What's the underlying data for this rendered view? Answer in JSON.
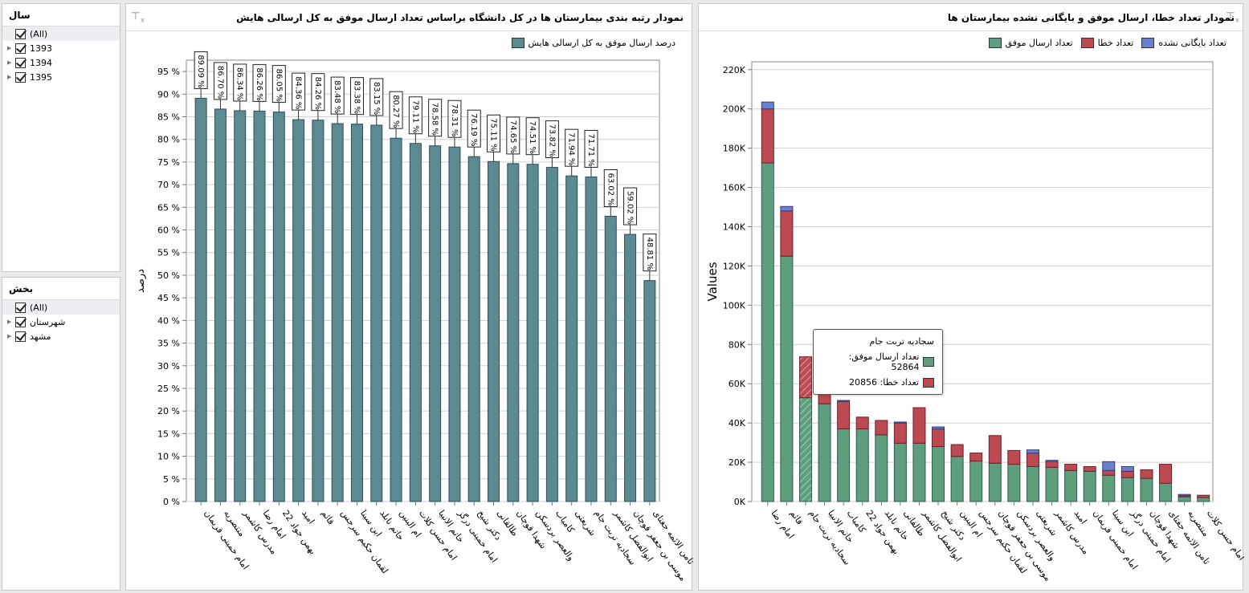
{
  "filters": [
    {
      "title": "سال",
      "items": [
        {
          "label": "(All)",
          "checked": true,
          "expandable": false
        },
        {
          "label": "1393",
          "checked": true,
          "expandable": true
        },
        {
          "label": "1394",
          "checked": true,
          "expandable": true
        },
        {
          "label": "1395",
          "checked": true,
          "expandable": true
        }
      ]
    },
    {
      "title": "بخش",
      "items": [
        {
          "label": "(All)",
          "checked": true,
          "expandable": false
        },
        {
          "label": "شهرستان",
          "checked": true,
          "expandable": true
        },
        {
          "label": "مشهد",
          "checked": true,
          "expandable": true
        }
      ]
    }
  ],
  "left_panel": {
    "title": "نمودار رتبه بندی بیمارستان ها در کل دانشگاه براساس تعداد ارسال موفق به کل ارسالی هایش",
    "clear_filter_icon": "clear-filter-icon"
  },
  "right_panel": {
    "title": "نمودار تعداد خطا، ارسال موفق و بایگانی نشده بیمارستان ها",
    "clear_filter_icon": "clear-filter-icon"
  },
  "colors": {
    "teal_bar": "#5b8a91",
    "success": "#5e9e7f",
    "error": "#bb4a52",
    "unarchived": "#6b7fcb"
  },
  "tooltip": {
    "title": "سجادیه تربت جام",
    "rows": [
      {
        "label": "تعداد ارسال موفق: 52864",
        "color": "#5e9e7f"
      },
      {
        "label": "تعداد خطا: 20856",
        "color": "#bb4a52"
      }
    ]
  },
  "chart_data": [
    {
      "type": "bar",
      "title": "نمودار رتبه بندی بیمارستان ها در کل دانشگاه براساس تعداد ارسال موفق به کل ارسالی هایش",
      "xlabel": "",
      "ylabel": "درصد",
      "ylim": [
        0,
        95
      ],
      "yticks": [
        "0 %",
        "5 %",
        "10 %",
        "15 %",
        "20 %",
        "25 %",
        "30 %",
        "35 %",
        "40 %",
        "45 %",
        "50 %",
        "55 %",
        "60 %",
        "65 %",
        "70 %",
        "75 %",
        "80 %",
        "85 %",
        "90 %",
        "95 %"
      ],
      "grid": true,
      "legend": {
        "position": "top-right",
        "entries": [
          "درصد ارسال موفق به کل ارسالی هایش"
        ]
      },
      "categories": [
        "امام خمینی فریمان",
        "منتصریه",
        "مدرس کاشمر",
        "امام رضا",
        "بهمن جواد 22",
        "امید",
        "قائم",
        "لقمان حکیم سرجس",
        "ابن سینا",
        "خاتم نابلد",
        "ام البنین",
        "امام حسن کلات",
        "خاتم الانبیا",
        "امام خمینی درگز",
        "دکتر شیخ",
        "طالقانی",
        "شهدا قوچان",
        "والعصر بردسکن",
        "کامیاب",
        "شریعتی",
        "سجادیه تربت جام",
        "ابوالفضل کاشمر",
        "موسی بن جعفر قوچان",
        "ثامن الائمه جغتای"
      ],
      "series": [
        {
          "name": "درصد ارسال موفق به کل ارسالی هایش",
          "values": [
            89.09,
            86.7,
            86.34,
            86.26,
            86.05,
            84.36,
            84.26,
            83.48,
            83.38,
            83.15,
            80.27,
            79.11,
            78.58,
            78.31,
            76.19,
            75.11,
            74.65,
            74.51,
            73.82,
            71.94,
            71.71,
            63.02,
            59.02,
            48.81
          ],
          "labels": [
            "89.09 %",
            "86.70 %",
            "86.34 %",
            "86.26 %",
            "86.05 %",
            "84.36 %",
            "84.26 %",
            "83.48 %",
            "83.38 %",
            "83.15 %",
            "80.27 %",
            "79.11 %",
            "78.58 %",
            "78.31 %",
            "76.19 %",
            "75.11 %",
            "74.65 %",
            "74.51 %",
            "73.82 %",
            "71.94 %",
            "71.71 %",
            "63.02 %",
            "59.02 %",
            "48.81 %"
          ]
        }
      ]
    },
    {
      "type": "bar",
      "stacked": true,
      "title": "نمودار تعداد خطا، ارسال موفق و بایگانی نشده بیمارستان ها",
      "xlabel": "",
      "ylabel": "Values",
      "ylim": [
        0,
        220000
      ],
      "yticks": [
        "0K",
        "20K",
        "40K",
        "60K",
        "80K",
        "100K",
        "120K",
        "140K",
        "160K",
        "180K",
        "200K",
        "220K"
      ],
      "grid": true,
      "legend": {
        "position": "top-right",
        "entries": [
          "تعداد ارسال موفق",
          "تعداد خطا",
          "تعداد بایگانی نشده"
        ]
      },
      "categories": [
        "امام رضا",
        "قائم",
        "سجادیه تربت جام",
        "خاتم الانبیا",
        "کامیاب",
        "بهمن جواد 22",
        "خاتم نابلد",
        "طالقانی",
        "ابوالفضل کاشمر",
        "دکتر شیخ",
        "ام البنین",
        "لقمان حکیم سرجس",
        "موسی بن جعفر قوچان",
        "والعصر بردسکن",
        "شریعتی",
        "مدرس کاشمر",
        "امید",
        "امام خمینی فریمان",
        "ابن سینا",
        "امام خمینی درگز",
        "شهدا قوچان",
        "ثامن الائمه جغتای",
        "منتصریه",
        "امام حسن کلات"
      ],
      "highlighted_index": 2,
      "series": [
        {
          "name": "تعداد ارسال موفق",
          "color": "#5e9e7f",
          "values": [
            172500,
            125000,
            52864,
            49800,
            37000,
            37000,
            34000,
            29700,
            29700,
            28000,
            23000,
            20600,
            19500,
            19000,
            17800,
            17400,
            15800,
            15400,
            13400,
            12200,
            11800,
            9300,
            2400,
            2000
          ]
        },
        {
          "name": "تعداد خطا",
          "color": "#bb4a52",
          "values": [
            27500,
            23000,
            20856,
            7500,
            14000,
            6000,
            7300,
            10300,
            18100,
            9000,
            6000,
            4100,
            14100,
            7000,
            6900,
            2900,
            3200,
            2400,
            2400,
            3200,
            4400,
            9700,
            600,
            1200
          ]
        },
        {
          "name": "تعداد بایگانی نشده",
          "color": "#6b7fcb",
          "values": [
            3500,
            2300,
            0,
            0,
            500,
            0,
            0,
            500,
            0,
            1000,
            0,
            0,
            0,
            0,
            1600,
            700,
            0,
            0,
            4500,
            2400,
            0,
            0,
            600,
            0
          ]
        }
      ]
    }
  ]
}
